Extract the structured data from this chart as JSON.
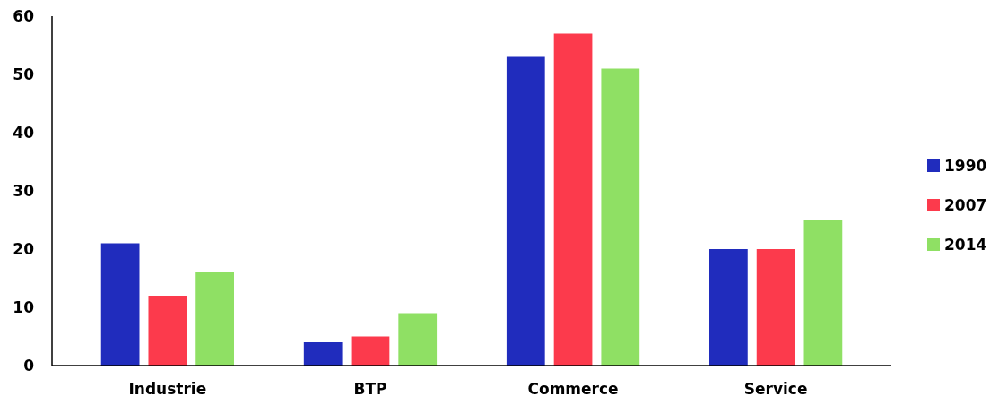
{
  "chart_data": {
    "type": "bar",
    "categories": [
      "Industrie",
      "BTP",
      "Commerce",
      "Service"
    ],
    "series": [
      {
        "name": "1990",
        "color": "#202cbd",
        "values": [
          21,
          4,
          53,
          20
        ]
      },
      {
        "name": "2007",
        "color": "#fc3a4c",
        "values": [
          12,
          5,
          57,
          20
        ]
      },
      {
        "name": "2014",
        "color": "#8fe064",
        "values": [
          16,
          9,
          51,
          25
        ]
      }
    ],
    "ylim": [
      0,
      60
    ],
    "yticks": [
      0,
      10,
      20,
      30,
      40,
      50,
      60
    ],
    "grid": false,
    "legend": "right"
  }
}
